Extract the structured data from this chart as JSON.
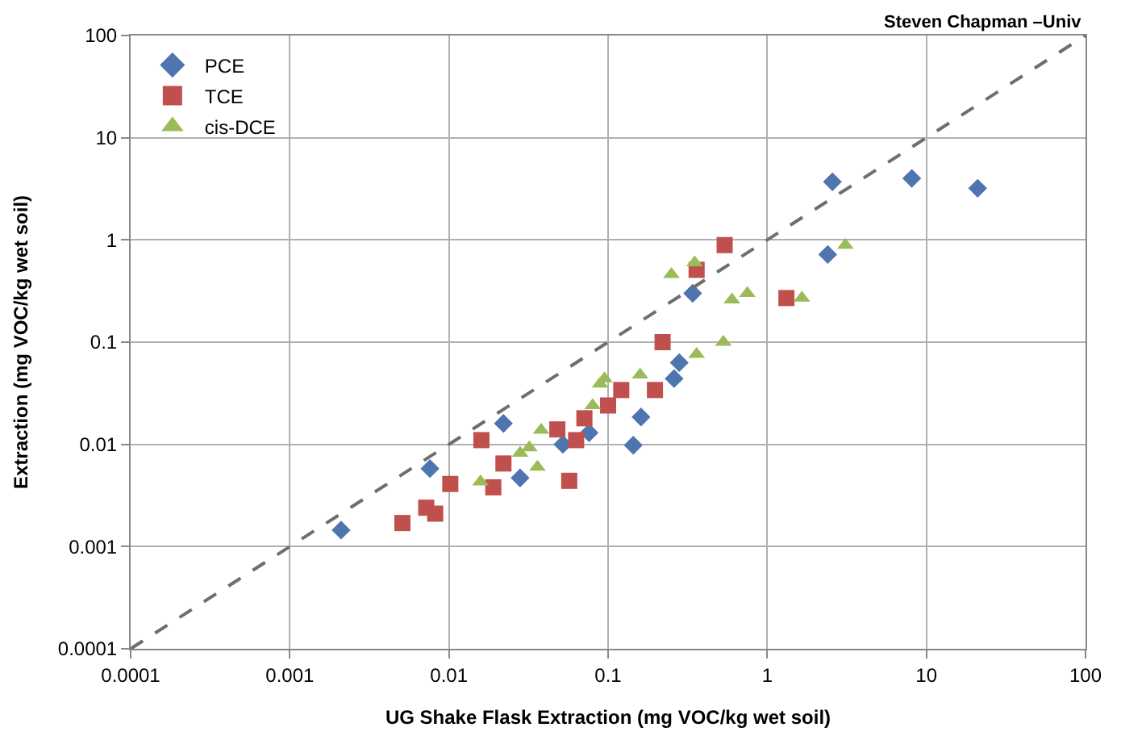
{
  "chart_data": {
    "type": "scatter",
    "xlabel": "UG Shake Flask Extraction (mg VOC/kg wet soil)",
    "ylabel": "Extraction (mg VOC/kg wet soil)",
    "annotations": [
      "Steven Chapman –Univ"
    ],
    "log": "xy",
    "grid": true,
    "legend": "top left",
    "xlim": [
      0.0001,
      100
    ],
    "ylim": [
      0.0001,
      100
    ],
    "xticks": [
      0.0001,
      0.001,
      0.01,
      0.1,
      1,
      10,
      100
    ],
    "yticks": [
      0.0001,
      0.001,
      0.01,
      0.1,
      1,
      10,
      100
    ],
    "series": [
      {
        "name": "PCE",
        "color": "#4f75b0",
        "marker": "diamond",
        "x": [
          0.0021,
          0.0076,
          0.022,
          0.028,
          0.052,
          0.076,
          0.144,
          0.161,
          0.26,
          0.28,
          0.34,
          2.4,
          2.57,
          8.1,
          21
        ],
        "values": [
          0.00145,
          0.0058,
          0.016,
          0.0047,
          0.01,
          0.013,
          0.0098,
          0.0185,
          0.044,
          0.063,
          0.3,
          0.72,
          3.7,
          4.0,
          3.2
        ]
      },
      {
        "name": "TCE",
        "color": "#c0504d",
        "marker": "square",
        "x": [
          0.0051,
          0.0072,
          0.0082,
          0.0102,
          0.016,
          0.019,
          0.022,
          0.048,
          0.057,
          0.063,
          0.071,
          0.1,
          0.121,
          0.197,
          0.22,
          0.36,
          0.54,
          1.32
        ],
        "values": [
          0.0017,
          0.0024,
          0.0021,
          0.0041,
          0.011,
          0.0038,
          0.0065,
          0.014,
          0.0044,
          0.011,
          0.018,
          0.024,
          0.034,
          0.034,
          0.1,
          0.51,
          0.89,
          0.27
        ]
      },
      {
        "name": "cis-DCE",
        "color": "#9bbb59",
        "marker": "triangle",
        "x": [
          0.0158,
          0.028,
          0.032,
          0.036,
          0.038,
          0.08,
          0.089,
          0.095,
          0.159,
          0.25,
          0.35,
          0.36,
          0.53,
          0.6,
          0.75,
          1.65,
          3.1
        ],
        "values": [
          0.0043,
          0.0082,
          0.0093,
          0.006,
          0.0138,
          0.024,
          0.039,
          0.044,
          0.048,
          0.46,
          0.6,
          0.076,
          0.1,
          0.26,
          0.3,
          0.27,
          0.89
        ]
      },
      {
        "type": "line",
        "color": "#6e6e6e",
        "line_style": "dashed",
        "marker": "none",
        "x": [
          0.0001,
          100
        ],
        "values": [
          0.0001,
          100
        ]
      }
    ]
  }
}
